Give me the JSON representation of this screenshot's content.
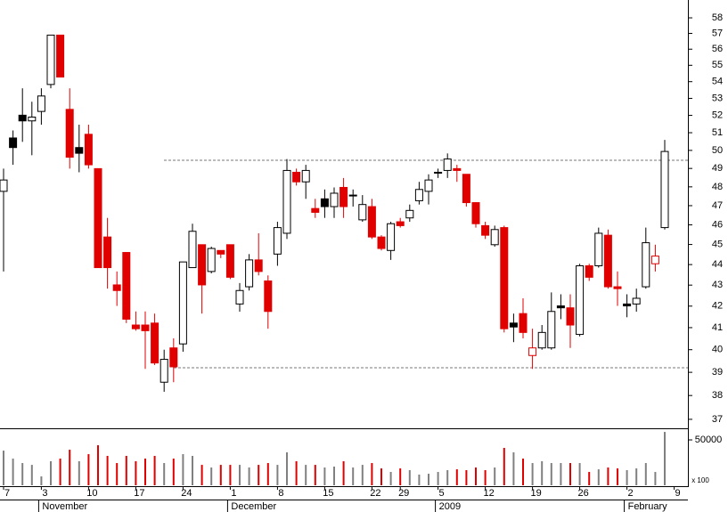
{
  "chart_data": {
    "type": "candlestick",
    "log_scale": true,
    "categories": [
      "7",
      null,
      null,
      null,
      "3",
      null,
      null,
      null,
      null,
      "10",
      null,
      null,
      null,
      null,
      "17",
      null,
      null,
      null,
      null,
      "24",
      null,
      null,
      null,
      null,
      "1",
      null,
      null,
      null,
      null,
      "8",
      null,
      null,
      null,
      null,
      "15",
      null,
      null,
      null,
      null,
      "22",
      null,
      null,
      "29",
      null,
      null,
      null,
      "5",
      null,
      null,
      null,
      null,
      "12",
      null,
      null,
      null,
      null,
      "19",
      null,
      null,
      null,
      null,
      "26",
      null,
      null,
      null,
      null,
      "2",
      null,
      null,
      null,
      null,
      "9"
    ],
    "month_labels": [
      null,
      null,
      null,
      null,
      "November",
      null,
      null,
      null,
      null,
      null,
      null,
      null,
      null,
      null,
      null,
      null,
      null,
      null,
      null,
      null,
      null,
      null,
      null,
      null,
      "December",
      null,
      null,
      null,
      null,
      null,
      null,
      null,
      null,
      null,
      null,
      null,
      null,
      null,
      null,
      null,
      null,
      null,
      null,
      null,
      null,
      null,
      "2009",
      null,
      null,
      null,
      null,
      null,
      null,
      null,
      null,
      null,
      null,
      null,
      null,
      null,
      null,
      null,
      null,
      null,
      null,
      null,
      "February",
      null,
      null,
      null,
      null,
      null
    ],
    "open": [
      47.76,
      50.7,
      52.01,
      51.68,
      52.23,
      53.83,
      56.89,
      52.35,
      50.16,
      50.91,
      48.99,
      45.38,
      43.01,
      44.6,
      41.12,
      41.12,
      41.21,
      38.57,
      40.08,
      40.26,
      43.85,
      44.99,
      43.66,
      44.7,
      44.99,
      42.1,
      42.92,
      44.23,
      43.2,
      44.52,
      45.57,
      48.79,
      48.27,
      46.85,
      47.36,
      46.95,
      47.97,
      47.56,
      46.26,
      46.95,
      45.38,
      44.7,
      46.16,
      46.36,
      47.26,
      47.76,
      48.79,
      48.89,
      48.99,
      48.68,
      47.16,
      45.96,
      44.99,
      45.86,
      41.21,
      41.65,
      39.74,
      40.08,
      40.08,
      42.01,
      41.92,
      40.69,
      43.94,
      43.94,
      45.47,
      42.92,
      42.1,
      42.1,
      42.92,
      44.04,
      45.86,
      null
    ],
    "high": [
      48.99,
      51.13,
      53.6,
      52.8,
      53.6,
      56.89,
      56.89,
      53.6,
      51.46,
      51.46,
      48.99,
      46.36,
      43.66,
      44.6,
      41.75,
      41.75,
      41.65,
      40.0,
      40.51,
      44.13,
      46.06,
      44.99,
      44.89,
      44.7,
      44.99,
      43.1,
      44.52,
      45.57,
      43.47,
      46.16,
      49.52,
      48.99,
      49.2,
      47.36,
      47.86,
      47.97,
      48.48,
      47.86,
      47.56,
      47.36,
      45.47,
      46.16,
      46.36,
      47.06,
      48.27,
      48.68,
      48.99,
      49.83,
      49.2,
      48.68,
      47.16,
      46.16,
      45.96,
      45.96,
      41.65,
      42.37,
      40.95,
      41.12,
      42.65,
      42.56,
      42.56,
      44.04,
      44.04,
      45.86,
      45.76,
      43.66,
      42.56,
      42.83,
      45.86,
      44.99,
      50.59,
      null
    ],
    "low": [
      43.66,
      49.2,
      50.48,
      49.73,
      51.46,
      53.6,
      54.28,
      48.99,
      48.79,
      48.99,
      43.85,
      42.83,
      42.01,
      41.21,
      40.86,
      39.15,
      39.32,
      38.16,
      38.57,
      39.91,
      43.85,
      41.65,
      43.57,
      44.32,
      43.29,
      41.74,
      42.74,
      43.47,
      40.95,
      43.94,
      45.28,
      48.07,
      47.36,
      46.36,
      46.36,
      46.36,
      46.36,
      46.95,
      46.16,
      45.28,
      44.7,
      44.23,
      45.86,
      46.16,
      47.06,
      47.06,
      48.48,
      48.48,
      48.27,
      46.95,
      45.86,
      45.28,
      44.89,
      40.78,
      40.34,
      40.51,
      39.15,
      40.0,
      40.0,
      41.39,
      40.08,
      40.6,
      43.2,
      43.85,
      42.83,
      42.01,
      41.48,
      41.74,
      42.83,
      43.66,
      45.76,
      null
    ],
    "close": [
      48.37,
      50.16,
      51.68,
      51.9,
      53.14,
      56.89,
      54.28,
      49.62,
      49.84,
      49.2,
      43.85,
      43.85,
      42.74,
      41.39,
      40.95,
      40.86,
      39.41,
      39.57,
      39.24,
      44.13,
      45.67,
      43.01,
      44.8,
      44.52,
      43.38,
      42.74,
      44.23,
      43.66,
      41.75,
      45.86,
      48.89,
      48.27,
      48.89,
      46.65,
      46.95,
      47.66,
      46.95,
      47.56,
      47.06,
      45.38,
      44.8,
      46.06,
      45.96,
      46.75,
      47.86,
      48.37,
      48.79,
      49.52,
      48.89,
      47.16,
      46.06,
      45.47,
      45.76,
      40.95,
      41.03,
      40.78,
      40.08,
      40.78,
      41.75,
      41.92,
      41.12,
      43.94,
      43.38,
      45.57,
      42.92,
      42.83,
      42.01,
      42.37,
      45.09,
      44.42,
      49.94,
      null
    ],
    "colors": [
      "#000000",
      "#000000",
      "#000000",
      "#000000",
      "#000000",
      "#000000",
      "#e00000",
      "#e00000",
      "#000000",
      "#e00000",
      "#e00000",
      "#e00000",
      "#e00000",
      "#e00000",
      "#e00000",
      "#e00000",
      "#e00000",
      "#000000",
      "#e00000",
      "#000000",
      "#000000",
      "#e00000",
      "#000000",
      "#e00000",
      "#e00000",
      "#000000",
      "#000000",
      "#e00000",
      "#e00000",
      "#000000",
      "#000000",
      "#e00000",
      "#000000",
      "#e00000",
      "#000000",
      "#000000",
      "#e00000",
      "#000000",
      "#000000",
      "#e00000",
      "#e00000",
      "#000000",
      "#e00000",
      "#000000",
      "#000000",
      "#000000",
      "#000000",
      "#000000",
      "#e00000",
      "#e00000",
      "#e00000",
      "#e00000",
      "#000000",
      "#e00000",
      "#000000",
      "#e00000",
      "#e00000",
      "#000000",
      "#000000",
      "#000000",
      "#e00000",
      "#000000",
      "#e00000",
      "#000000",
      "#e00000",
      "#e00000",
      "#000000",
      "#000000",
      "#000000",
      "#e00000",
      "#000000",
      null
    ],
    "ylim": [
      36.63,
      59.17
    ],
    "yticks": [
      37,
      38,
      39,
      40,
      41,
      42,
      43,
      44,
      45,
      46,
      47,
      48,
      49,
      50,
      51,
      52,
      53,
      54,
      55,
      56,
      57,
      58
    ],
    "reference_lines": [
      49.45,
      39.2
    ],
    "volume": {
      "values": [
        38200,
        29400,
        24500,
        22500,
        9800,
        26500,
        29400,
        39200,
        26500,
        34300,
        44100,
        32400,
        24500,
        32400,
        26500,
        29400,
        32400,
        24500,
        29400,
        34300,
        32400,
        22500,
        19600,
        22500,
        22500,
        22500,
        19600,
        22500,
        24500,
        22500,
        36300,
        26500,
        22500,
        22500,
        19600,
        20600,
        26500,
        19600,
        22500,
        24500,
        18600,
        14700,
        18600,
        16700,
        11800,
        12700,
        14700,
        16700,
        17600,
        16700,
        19600,
        16700,
        19600,
        41200,
        36300,
        29400,
        24500,
        26500,
        24500,
        24500,
        24500,
        24500,
        14700,
        17600,
        19600,
        18600,
        16700,
        18600,
        24500,
        14700,
        58800,
        null
      ],
      "up_color": "#808080",
      "ylim": [
        0,
        61800
      ],
      "yticks": [
        50000
      ],
      "unit_label": "x 100"
    }
  }
}
